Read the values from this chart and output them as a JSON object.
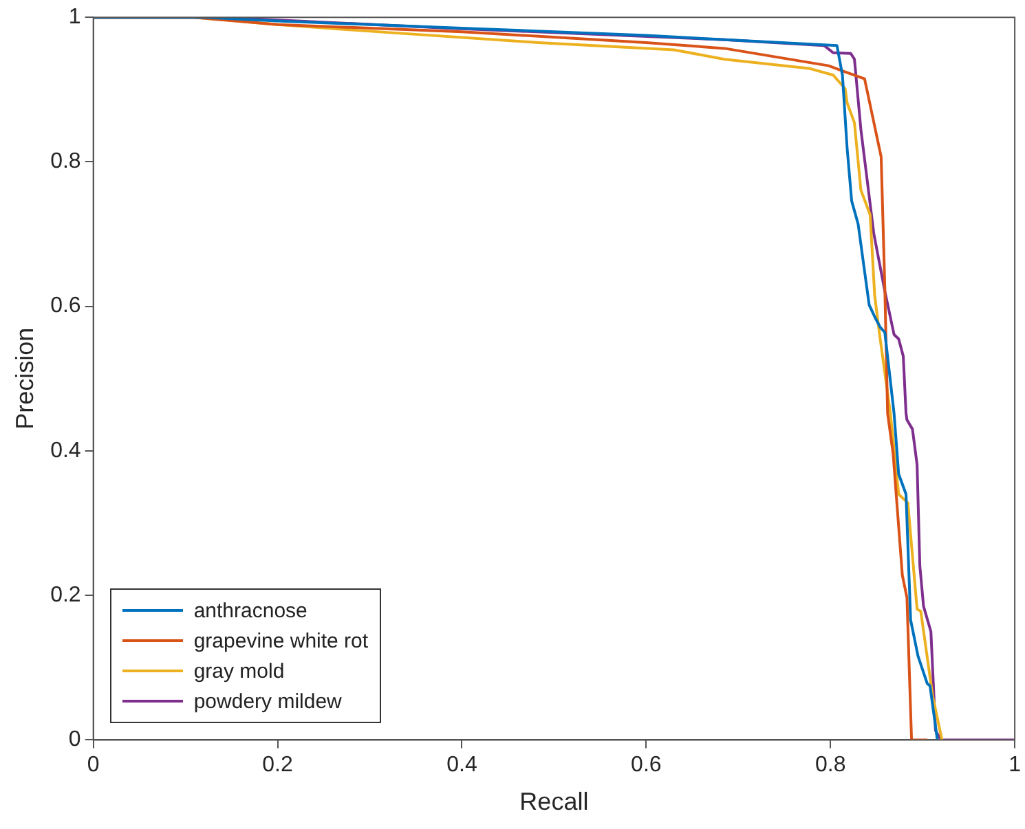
{
  "chart_data": {
    "type": "line",
    "xlabel": "Recall",
    "ylabel": "Precision",
    "xlim": [
      0,
      1
    ],
    "ylim": [
      0,
      1
    ],
    "xticks": [
      0,
      0.2,
      0.4,
      0.6,
      0.8,
      1
    ],
    "yticks": [
      0,
      0.2,
      0.4,
      0.6,
      0.8,
      1
    ],
    "grid": false,
    "legend": "bottom left",
    "marker": "none",
    "line_style": "solid",
    "series": [
      {
        "name": "anthracnose",
        "color": "#0072bd",
        "x": [
          0,
          0.12,
          0.2,
          0.4,
          0.6,
          0.7,
          0.807,
          0.813,
          0.818,
          0.823,
          0.83,
          0.842,
          0.849,
          0.854,
          0.859,
          0.869,
          0.874,
          0.882,
          0.887,
          0.895,
          0.905,
          0.908,
          0.916
        ],
        "values": [
          1,
          1,
          0.995,
          0.985,
          0.975,
          0.968,
          0.961,
          0.92,
          0.82,
          0.746,
          0.714,
          0.602,
          0.583,
          0.571,
          0.564,
          0.452,
          0.368,
          0.34,
          0.166,
          0.116,
          0.078,
          0.075,
          0
        ]
      },
      {
        "name": "grapevine white rot",
        "color": "#d95319",
        "x": [
          0,
          0.109,
          0.2,
          0.4,
          0.6,
          0.685,
          0.798,
          0.815,
          0.837,
          0.855,
          0.859,
          0.862,
          0.868,
          0.878,
          0.883,
          0.888,
          0.905
        ],
        "values": [
          1,
          1,
          0.99,
          0.98,
          0.965,
          0.957,
          0.933,
          0.925,
          0.915,
          0.807,
          0.626,
          0.452,
          0.396,
          0.228,
          0.197,
          0,
          0
        ]
      },
      {
        "name": "gray mold",
        "color": "#edb120",
        "x": [
          0,
          0.109,
          0.2,
          0.286,
          0.483,
          0.63,
          0.685,
          0.778,
          0.803,
          0.816,
          0.818,
          0.826,
          0.833,
          0.843,
          0.848,
          0.853,
          0.865,
          0.874,
          0.884,
          0.894,
          0.898,
          0.911,
          0.921
        ],
        "values": [
          1,
          1,
          0.99,
          0.982,
          0.965,
          0.955,
          0.942,
          0.929,
          0.92,
          0.901,
          0.882,
          0.854,
          0.761,
          0.727,
          0.615,
          0.564,
          0.452,
          0.34,
          0.328,
          0.181,
          0.178,
          0.06,
          0
        ]
      },
      {
        "name": "powdery mildew",
        "color": "#7e2f8e",
        "x": [
          0,
          0.139,
          0.385,
          0.685,
          0.793,
          0.803,
          0.822,
          0.826,
          0.833,
          0.847,
          0.859,
          0.869,
          0.874,
          0.879,
          0.882,
          0.883,
          0.889,
          0.894,
          0.897,
          0.901,
          0.909,
          0.914,
          0.92,
          1
        ],
        "values": [
          1,
          1,
          0.985,
          0.969,
          0.961,
          0.951,
          0.95,
          0.942,
          0.845,
          0.701,
          0.621,
          0.561,
          0.555,
          0.531,
          0.452,
          0.443,
          0.43,
          0.381,
          0.241,
          0.185,
          0.15,
          0.013,
          0,
          0
        ]
      }
    ]
  }
}
